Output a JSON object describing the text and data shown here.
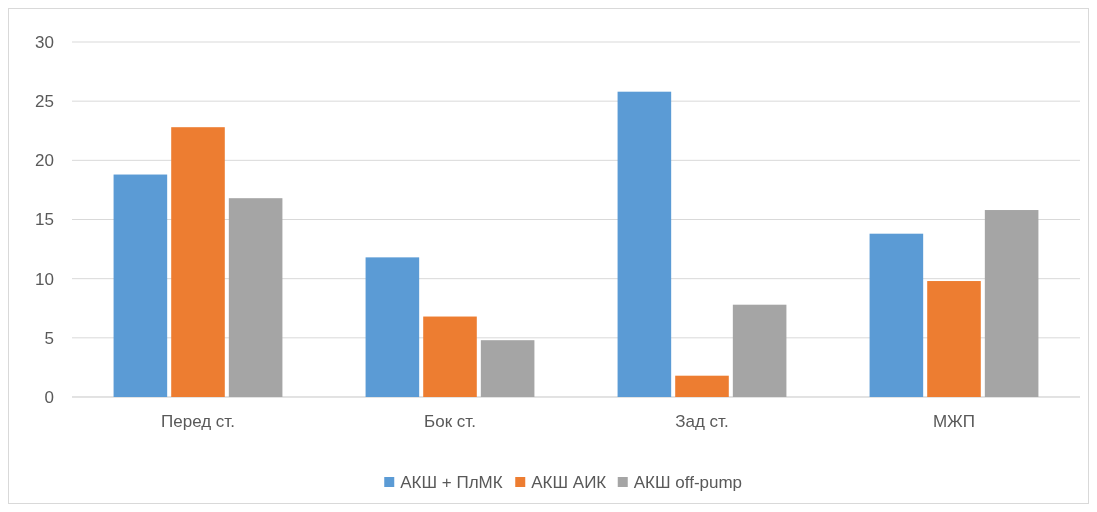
{
  "chart_data": {
    "type": "bar",
    "categories": [
      "Перед ст.",
      "Бок ст.",
      "Зад ст.",
      "МЖП"
    ],
    "series": [
      {
        "name": "АКШ + ПлМК",
        "color": "#5b9bd5",
        "values": [
          18.8,
          11.8,
          25.8,
          13.8
        ]
      },
      {
        "name": "АКШ АИК",
        "color": "#ed7d31",
        "values": [
          22.8,
          6.8,
          1.8,
          9.8
        ]
      },
      {
        "name": "АКШ off-pump",
        "color": "#a5a5a5",
        "values": [
          16.8,
          4.8,
          7.8,
          15.8
        ]
      }
    ],
    "ylim": [
      0,
      30
    ],
    "yticks": [
      0,
      5,
      10,
      15,
      20,
      25,
      30
    ],
    "grid": "y",
    "legend": "bottom"
  }
}
